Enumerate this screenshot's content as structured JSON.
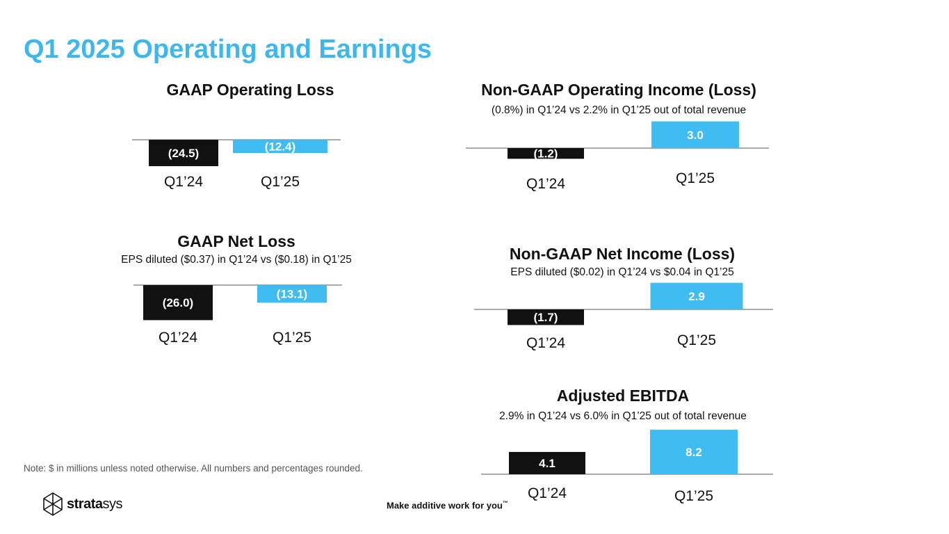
{
  "page": {
    "title": "Q1 2025 Operating and Earnings",
    "note": "Note: $ in millions unless noted otherwise. All numbers and percentages rounded.",
    "logo_bold": "strata",
    "logo_light": "sys",
    "tagline": "Make additive work for you",
    "tagline_mark": "™"
  },
  "colors": {
    "title": "#3EB8EC",
    "q124": "#111111",
    "q125": "#3FBDF2",
    "axis": "#555555"
  },
  "chart_data": [
    {
      "id": "gaap-operating-loss",
      "type": "bar",
      "title": "GAAP Operating Loss",
      "subtitle": "",
      "categories": [
        "Q1’24",
        "Q1’25"
      ],
      "values": [
        -24.5,
        -12.4
      ],
      "labels": [
        "(24.5)",
        "(12.4)"
      ],
      "ylim": [
        -32,
        0
      ]
    },
    {
      "id": "non-gaap-operating-income",
      "type": "bar",
      "title": "Non-GAAP Operating Income (Loss)",
      "subtitle": "(0.8%) in Q1’24 vs 2.2% in Q1’25 out of total revenue",
      "categories": [
        "Q1’24",
        "Q1’25"
      ],
      "values": [
        -1.2,
        3.0
      ],
      "labels": [
        "(1.2)",
        "3.0"
      ],
      "ylim": [
        -2,
        4
      ]
    },
    {
      "id": "gaap-net-loss",
      "type": "bar",
      "title": "GAAP Net Loss",
      "subtitle": "EPS diluted ($0.37) in Q1’24 vs ($0.18) in Q1’25",
      "categories": [
        "Q1’24",
        "Q1’25"
      ],
      "values": [
        -26.0,
        -13.1
      ],
      "labels": [
        "(26.0)",
        "(13.1)"
      ],
      "ylim": [
        -32,
        0
      ]
    },
    {
      "id": "non-gaap-net-income",
      "type": "bar",
      "title": "Non-GAAP Net Income (Loss)",
      "subtitle": "EPS diluted ($0.02) in Q1’24 vs $0.04 in Q1’25",
      "categories": [
        "Q1’24",
        "Q1’25"
      ],
      "values": [
        -1.7,
        2.9
      ],
      "labels": [
        "(1.7)",
        "2.9"
      ],
      "ylim": [
        -2.5,
        4
      ]
    },
    {
      "id": "adjusted-ebitda",
      "type": "bar",
      "title": "Adjusted EBITDA",
      "subtitle": "2.9% in Q1’24 vs 6.0% in Q1’25 out of total revenue",
      "categories": [
        "Q1’24",
        "Q1’25"
      ],
      "values": [
        4.1,
        8.2
      ],
      "labels": [
        "4.1",
        "8.2"
      ],
      "ylim": [
        0,
        10
      ]
    }
  ]
}
